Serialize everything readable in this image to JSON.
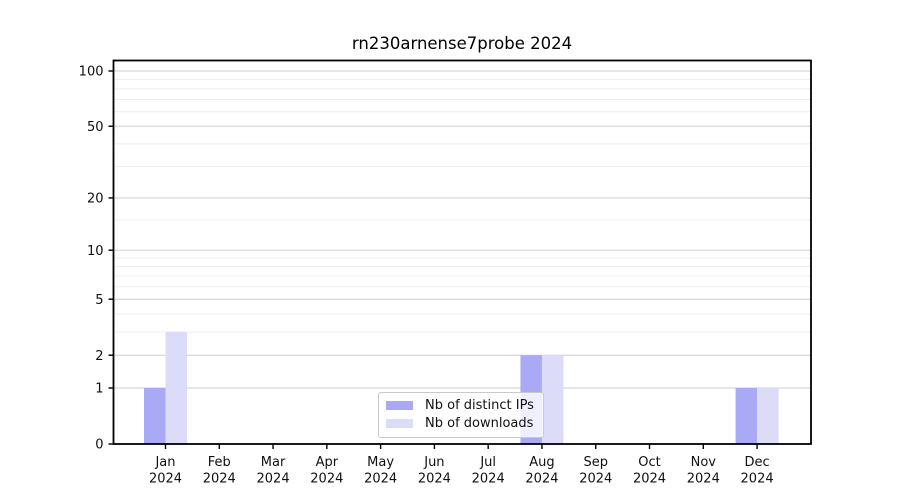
{
  "chart_data": {
    "type": "bar",
    "title": "rn230arnense7probe 2024",
    "categories": [
      "Jan",
      "Feb",
      "Mar",
      "Apr",
      "May",
      "Jun",
      "Jul",
      "Aug",
      "Sep",
      "Oct",
      "Nov",
      "Dec"
    ],
    "category_year_label": "2024",
    "series": [
      {
        "name": "Nb of distinct IPs",
        "color": "#a9a9f6",
        "values": [
          1,
          0,
          0,
          0,
          0,
          0,
          0,
          2,
          0,
          0,
          0,
          1
        ]
      },
      {
        "name": "Nb of downloads",
        "color": "#dcdcf9",
        "values": [
          3,
          0,
          0,
          0,
          0,
          0,
          0,
          2,
          0,
          0,
          0,
          1
        ]
      }
    ],
    "y_axis": {
      "scale": "log1p",
      "range": [
        0,
        100
      ],
      "ticks": [
        0,
        1,
        2,
        5,
        10,
        20,
        50,
        100
      ],
      "minor_gridlines": [
        3,
        4,
        6,
        7,
        8,
        9,
        15,
        30,
        40,
        60,
        70,
        80,
        90
      ]
    },
    "legend": {
      "position": "lower center"
    },
    "grid": {
      "major_color": "#cdcdcd",
      "minor_color": "#ededed"
    },
    "axis_color": "#000000",
    "tick_label_color": "#111111"
  }
}
